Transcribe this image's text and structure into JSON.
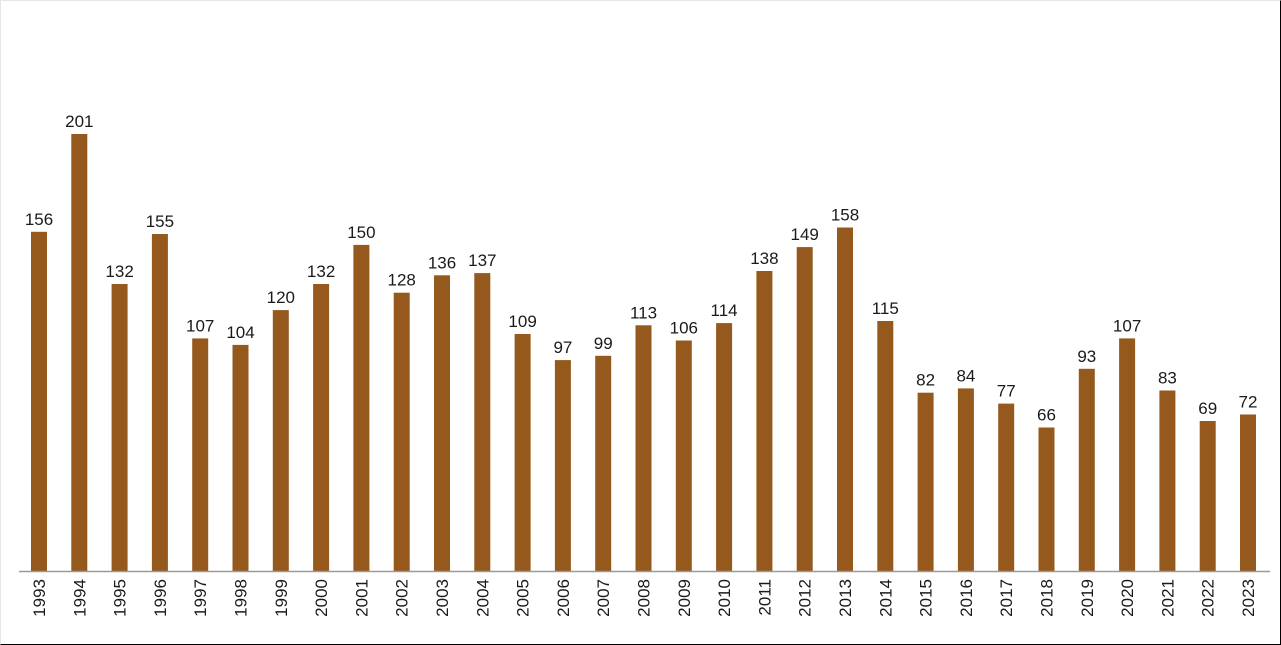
{
  "chart_data": {
    "type": "bar",
    "title": "",
    "xlabel": "",
    "ylabel": "",
    "ylim": [
      0,
      201
    ],
    "grid": false,
    "legend": "none",
    "bar_color": "#95591d",
    "axis_color": "#9a9a9a",
    "categories": [
      "1993",
      "1994",
      "1995",
      "1996",
      "1997",
      "1998",
      "1999",
      "2000",
      "2001",
      "2002",
      "2003",
      "2004",
      "2005",
      "2006",
      "2007",
      "2008",
      "2009",
      "2010",
      "2011",
      "2012",
      "2013",
      "2014",
      "2015",
      "2016",
      "2017",
      "2018",
      "2019",
      "2020",
      "2021",
      "2022",
      "2023"
    ],
    "values": [
      156,
      201,
      132,
      155,
      107,
      104,
      120,
      132,
      150,
      128,
      136,
      137,
      109,
      97,
      99,
      113,
      106,
      114,
      138,
      149,
      158,
      115,
      82,
      84,
      77,
      66,
      93,
      107,
      83,
      69,
      72
    ]
  }
}
